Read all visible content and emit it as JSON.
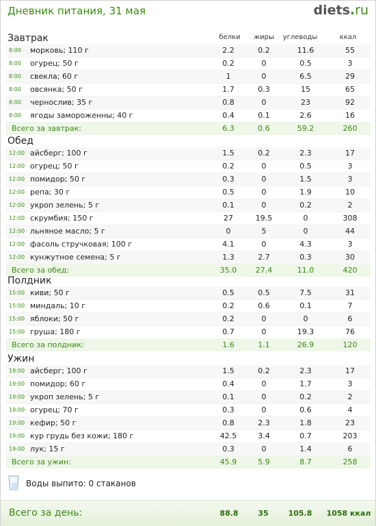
{
  "header": {
    "title": "Дневник питания, 31 мая",
    "logo_main": "diets",
    "logo_dot": ".",
    "logo_tld": "ru"
  },
  "columns": {
    "protein": "белки",
    "fat": "жиры",
    "carbs": "углеводы",
    "kcal": "ккал"
  },
  "meals": [
    {
      "title": "Завтрак",
      "items": [
        {
          "time": "8:00",
          "name": "морковь; 110 г",
          "protein": "2.2",
          "fat": "0.2",
          "carbs": "11.6",
          "kcal": "55"
        },
        {
          "time": "8:00",
          "name": "огурец; 50 г",
          "protein": "0.2",
          "fat": "0",
          "carbs": "0.5",
          "kcal": "3"
        },
        {
          "time": "8:00",
          "name": "свекла; 60 г",
          "protein": "1",
          "fat": "0",
          "carbs": "6.5",
          "kcal": "29"
        },
        {
          "time": "8:00",
          "name": "овсянка; 50 г",
          "protein": "1.7",
          "fat": "0.3",
          "carbs": "15",
          "kcal": "65"
        },
        {
          "time": "8:00",
          "name": "чернослив; 35 г",
          "protein": "0.8",
          "fat": "0",
          "carbs": "23",
          "kcal": "92"
        },
        {
          "time": "8:00",
          "name": "ягоды замороженны; 40 г",
          "protein": "0.4",
          "fat": "0.1",
          "carbs": "2.6",
          "kcal": "16"
        }
      ],
      "total": {
        "label": "Всего за завтрак:",
        "protein": "6.3",
        "fat": "0.6",
        "carbs": "59.2",
        "kcal": "260"
      }
    },
    {
      "title": "Обед",
      "items": [
        {
          "time": "12:00",
          "name": "айсберг; 100 г",
          "protein": "1.5",
          "fat": "0.2",
          "carbs": "2.3",
          "kcal": "17"
        },
        {
          "time": "12:00",
          "name": "огурец; 50 г",
          "protein": "0.2",
          "fat": "0",
          "carbs": "0.5",
          "kcal": "3"
        },
        {
          "time": "12:00",
          "name": "помидор; 50 г",
          "protein": "0.3",
          "fat": "0",
          "carbs": "1.5",
          "kcal": "3"
        },
        {
          "time": "12:00",
          "name": "репа; 30 г",
          "protein": "0.5",
          "fat": "0",
          "carbs": "1.9",
          "kcal": "10"
        },
        {
          "time": "12:00",
          "name": "укроп зелень; 5 г",
          "protein": "0.1",
          "fat": "0",
          "carbs": "0.2",
          "kcal": "2"
        },
        {
          "time": "12:00",
          "name": "скрумбия; 150 г",
          "protein": "27",
          "fat": "19.5",
          "carbs": "0",
          "kcal": "308"
        },
        {
          "time": "12:00",
          "name": "льняное масло; 5 г",
          "protein": "0",
          "fat": "5",
          "carbs": "0",
          "kcal": "44"
        },
        {
          "time": "12:00",
          "name": "фасоль стручковая; 100 г",
          "protein": "4.1",
          "fat": "0",
          "carbs": "4.3",
          "kcal": "3"
        },
        {
          "time": "12:00",
          "name": "кунжутное семена; 5 г",
          "protein": "1.3",
          "fat": "2.7",
          "carbs": "0.3",
          "kcal": "30"
        }
      ],
      "total": {
        "label": "Всего за обед:",
        "protein": "35.0",
        "fat": "27.4",
        "carbs": "11.0",
        "kcal": "420"
      }
    },
    {
      "title": "Полдник",
      "items": [
        {
          "time": "15:00",
          "name": "киви; 50 г",
          "protein": "0.5",
          "fat": "0.5",
          "carbs": "7.5",
          "kcal": "31"
        },
        {
          "time": "15:00",
          "name": "миндаль; 10 г",
          "protein": "0.2",
          "fat": "0.6",
          "carbs": "0.1",
          "kcal": "7"
        },
        {
          "time": "15:00",
          "name": "яблоки; 50 г",
          "protein": "0.2",
          "fat": "0",
          "carbs": "0",
          "kcal": "6"
        },
        {
          "time": "15:00",
          "name": "груша; 180 г",
          "protein": "0.7",
          "fat": "0",
          "carbs": "19.3",
          "kcal": "76"
        }
      ],
      "total": {
        "label": "Всего за полдник:",
        "protein": "1.6",
        "fat": "1.1",
        "carbs": "26.9",
        "kcal": "120"
      }
    },
    {
      "title": "Ужин",
      "items": [
        {
          "time": "19:00",
          "name": "айсберг; 100 г",
          "protein": "1.5",
          "fat": "0.2",
          "carbs": "2.3",
          "kcal": "17"
        },
        {
          "time": "19:00",
          "name": "помидор; 60 г",
          "protein": "0.4",
          "fat": "0",
          "carbs": "1.7",
          "kcal": "3"
        },
        {
          "time": "19:00",
          "name": "укроп зелень; 5 г",
          "protein": "0.1",
          "fat": "0",
          "carbs": "0.2",
          "kcal": "2"
        },
        {
          "time": "19:00",
          "name": "огурец; 70 г",
          "protein": "0.3",
          "fat": "0",
          "carbs": "0.6",
          "kcal": "4"
        },
        {
          "time": "19:00",
          "name": "кефир; 50 г",
          "protein": "0.8",
          "fat": "2.3",
          "carbs": "1.8",
          "kcal": "23"
        },
        {
          "time": "19:00",
          "name": "кур грудь без кожи; 180 г",
          "protein": "42.5",
          "fat": "3.4",
          "carbs": "0.7",
          "kcal": "203"
        },
        {
          "time": "19:00",
          "name": "лук; 15 г",
          "protein": "0.3",
          "fat": "0",
          "carbs": "1.4",
          "kcal": "6"
        }
      ],
      "total": {
        "label": "Всего за ужин:",
        "protein": "45.9",
        "fat": "5.9",
        "carbs": "8.7",
        "kcal": "258"
      }
    }
  ],
  "water": {
    "icon": "glass-icon",
    "text": "Воды выпито: 0 стаканов"
  },
  "day_total": {
    "label": "Всего за день:",
    "protein": "88.8",
    "fat": "35",
    "carbs": "105.8",
    "kcal": "1058 ккал"
  }
}
